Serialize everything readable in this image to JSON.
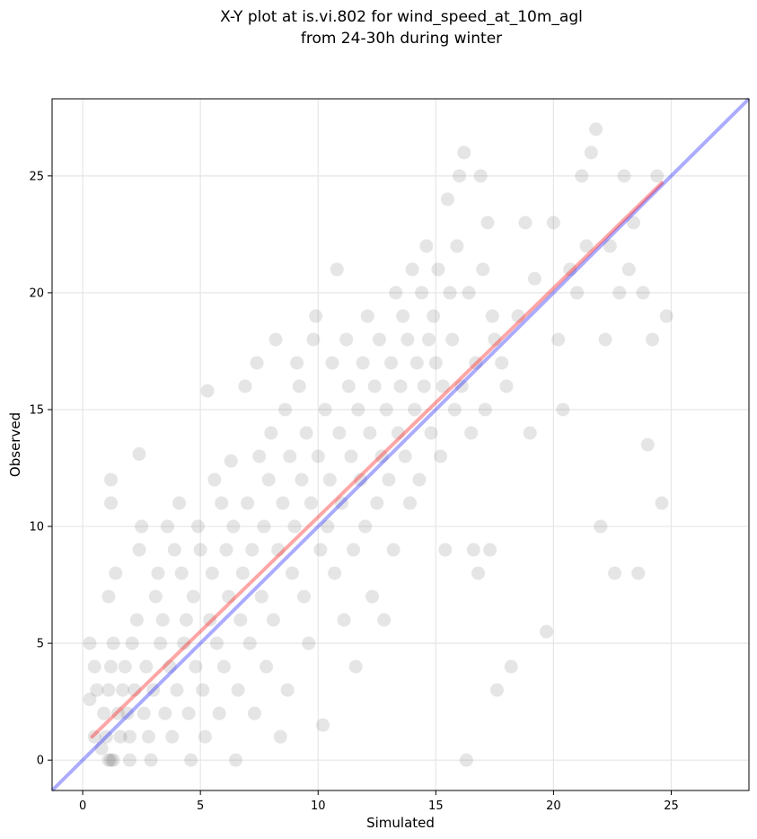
{
  "chart_data": {
    "type": "scatter",
    "title_line1": "X-Y plot at is.vi.802 for wind_speed_at_10m_agl",
    "title_line2": "from 24-30h during winter",
    "xlabel": "Simulated",
    "ylabel": "Observed",
    "xlim": [
      -1.3,
      28.3
    ],
    "ylim": [
      -1.3,
      28.3
    ],
    "xticks": [
      0,
      5,
      10,
      15,
      20,
      25
    ],
    "yticks": [
      0,
      5,
      10,
      15,
      20,
      25
    ],
    "grid": true,
    "colors": {
      "points": "#333333",
      "fit_line": "#ff0000",
      "identity_line": "#0000ff",
      "grid": "#e6e6e6"
    },
    "fit_line": {
      "x": [
        0.4,
        24.6
      ],
      "y": [
        1.0,
        24.7
      ]
    },
    "identity_line": {
      "x": [
        -1.3,
        28.3
      ],
      "y": [
        -1.3,
        28.3
      ]
    },
    "points": [
      [
        0.3,
        5
      ],
      [
        0.3,
        2.6
      ],
      [
        0.5,
        4
      ],
      [
        0.6,
        3
      ],
      [
        0.5,
        1
      ],
      [
        0.8,
        0.5
      ],
      [
        0.9,
        2
      ],
      [
        1.0,
        1
      ],
      [
        1.1,
        0
      ],
      [
        1.2,
        0
      ],
      [
        1.3,
        0
      ],
      [
        1.1,
        3
      ],
      [
        1.2,
        4
      ],
      [
        1.3,
        5
      ],
      [
        1.1,
        7
      ],
      [
        1.2,
        11
      ],
      [
        1.2,
        12
      ],
      [
        1.4,
        8
      ],
      [
        1.5,
        2
      ],
      [
        1.6,
        1
      ],
      [
        1.7,
        3
      ],
      [
        1.8,
        4
      ],
      [
        1.9,
        2
      ],
      [
        2.0,
        1
      ],
      [
        2.0,
        0
      ],
      [
        2.1,
        5
      ],
      [
        2.2,
        3
      ],
      [
        2.3,
        6
      ],
      [
        2.4,
        9
      ],
      [
        2.4,
        13.1
      ],
      [
        2.5,
        10
      ],
      [
        2.6,
        2
      ],
      [
        2.7,
        4
      ],
      [
        2.8,
        1
      ],
      [
        2.9,
        0
      ],
      [
        3.0,
        3
      ],
      [
        3.1,
        7
      ],
      [
        3.2,
        8
      ],
      [
        3.3,
        5
      ],
      [
        3.4,
        6
      ],
      [
        3.5,
        2
      ],
      [
        3.6,
        10
      ],
      [
        3.7,
        4
      ],
      [
        3.8,
        1
      ],
      [
        3.9,
        9
      ],
      [
        4.0,
        3
      ],
      [
        4.1,
        11
      ],
      [
        4.2,
        8
      ],
      [
        4.3,
        5
      ],
      [
        4.4,
        6
      ],
      [
        4.5,
        2
      ],
      [
        4.6,
        0
      ],
      [
        4.7,
        7
      ],
      [
        4.8,
        4
      ],
      [
        4.9,
        10
      ],
      [
        5.0,
        9
      ],
      [
        5.1,
        3
      ],
      [
        5.2,
        1
      ],
      [
        5.3,
        15.8
      ],
      [
        5.4,
        6
      ],
      [
        5.5,
        8
      ],
      [
        5.6,
        12
      ],
      [
        5.7,
        5
      ],
      [
        5.8,
        2
      ],
      [
        5.9,
        11
      ],
      [
        6.0,
        4
      ],
      [
        6.1,
        9
      ],
      [
        6.2,
        7
      ],
      [
        6.3,
        12.8
      ],
      [
        6.4,
        10
      ],
      [
        6.5,
        0
      ],
      [
        6.6,
        3
      ],
      [
        6.7,
        6
      ],
      [
        6.8,
        8
      ],
      [
        6.9,
        16
      ],
      [
        7.0,
        11
      ],
      [
        7.1,
        5
      ],
      [
        7.2,
        9
      ],
      [
        7.3,
        2
      ],
      [
        7.4,
        17
      ],
      [
        7.5,
        13
      ],
      [
        7.6,
        7
      ],
      [
        7.7,
        10
      ],
      [
        7.8,
        4
      ],
      [
        7.9,
        12
      ],
      [
        8.0,
        14
      ],
      [
        8.1,
        6
      ],
      [
        8.2,
        18
      ],
      [
        8.3,
        9
      ],
      [
        8.4,
        1
      ],
      [
        8.5,
        11
      ],
      [
        8.6,
        15
      ],
      [
        8.7,
        3
      ],
      [
        8.8,
        13
      ],
      [
        8.9,
        8
      ],
      [
        9.0,
        10
      ],
      [
        9.1,
        17
      ],
      [
        9.2,
        16
      ],
      [
        9.3,
        12
      ],
      [
        9.4,
        7
      ],
      [
        9.5,
        14
      ],
      [
        9.6,
        5
      ],
      [
        9.7,
        11
      ],
      [
        9.8,
        18
      ],
      [
        9.9,
        19
      ],
      [
        10.0,
        13
      ],
      [
        10.1,
        9
      ],
      [
        10.2,
        1.5
      ],
      [
        10.3,
        15
      ],
      [
        10.4,
        10
      ],
      [
        10.5,
        12
      ],
      [
        10.6,
        17
      ],
      [
        10.7,
        8
      ],
      [
        10.8,
        21
      ],
      [
        10.9,
        14
      ],
      [
        11.0,
        11
      ],
      [
        11.1,
        6
      ],
      [
        11.2,
        18
      ],
      [
        11.3,
        16
      ],
      [
        11.4,
        13
      ],
      [
        11.5,
        9
      ],
      [
        11.6,
        4
      ],
      [
        11.7,
        15
      ],
      [
        11.8,
        12
      ],
      [
        11.9,
        17
      ],
      [
        12.0,
        10
      ],
      [
        12.1,
        19
      ],
      [
        12.2,
        14
      ],
      [
        12.3,
        7
      ],
      [
        12.4,
        16
      ],
      [
        12.5,
        11
      ],
      [
        12.6,
        18
      ],
      [
        12.7,
        13
      ],
      [
        12.8,
        6
      ],
      [
        12.9,
        15
      ],
      [
        13.0,
        12
      ],
      [
        13.1,
        17
      ],
      [
        13.2,
        9
      ],
      [
        13.3,
        20
      ],
      [
        13.4,
        14
      ],
      [
        13.5,
        16
      ],
      [
        13.6,
        19
      ],
      [
        13.7,
        13
      ],
      [
        13.8,
        18
      ],
      [
        13.9,
        11
      ],
      [
        14.0,
        21
      ],
      [
        14.1,
        15
      ],
      [
        14.2,
        17
      ],
      [
        14.3,
        12
      ],
      [
        14.4,
        20
      ],
      [
        14.5,
        16
      ],
      [
        14.6,
        22
      ],
      [
        14.7,
        18
      ],
      [
        14.8,
        14
      ],
      [
        14.9,
        19
      ],
      [
        15.0,
        17
      ],
      [
        15.1,
        21
      ],
      [
        15.2,
        13
      ],
      [
        15.3,
        16
      ],
      [
        15.4,
        9
      ],
      [
        15.5,
        24
      ],
      [
        15.6,
        20
      ],
      [
        15.7,
        18
      ],
      [
        15.8,
        15
      ],
      [
        15.9,
        22
      ],
      [
        16.0,
        25
      ],
      [
        16.1,
        16
      ],
      [
        16.2,
        26
      ],
      [
        16.3,
        0
      ],
      [
        16.4,
        20
      ],
      [
        16.5,
        14
      ],
      [
        16.6,
        9
      ],
      [
        16.7,
        17
      ],
      [
        16.8,
        8
      ],
      [
        16.9,
        25
      ],
      [
        17.0,
        21
      ],
      [
        17.1,
        15
      ],
      [
        17.2,
        23
      ],
      [
        17.3,
        9
      ],
      [
        17.4,
        19
      ],
      [
        17.5,
        18
      ],
      [
        17.6,
        3
      ],
      [
        17.8,
        17
      ],
      [
        18.0,
        16
      ],
      [
        18.2,
        4
      ],
      [
        18.5,
        19
      ],
      [
        18.8,
        23
      ],
      [
        19.0,
        14
      ],
      [
        19.2,
        20.6
      ],
      [
        19.7,
        5.5
      ],
      [
        20.0,
        23
      ],
      [
        20.2,
        18
      ],
      [
        20.4,
        15
      ],
      [
        20.7,
        21
      ],
      [
        21.0,
        20
      ],
      [
        21.2,
        25
      ],
      [
        21.4,
        22
      ],
      [
        21.6,
        26
      ],
      [
        21.8,
        27
      ],
      [
        22.0,
        10
      ],
      [
        22.2,
        18
      ],
      [
        22.4,
        22
      ],
      [
        22.6,
        8
      ],
      [
        22.8,
        20
      ],
      [
        23.0,
        25
      ],
      [
        23.2,
        21
      ],
      [
        23.4,
        23
      ],
      [
        23.6,
        8
      ],
      [
        23.8,
        20
      ],
      [
        24.0,
        13.5
      ],
      [
        24.2,
        18
      ],
      [
        24.4,
        25
      ],
      [
        24.6,
        11
      ],
      [
        24.8,
        19
      ]
    ]
  }
}
